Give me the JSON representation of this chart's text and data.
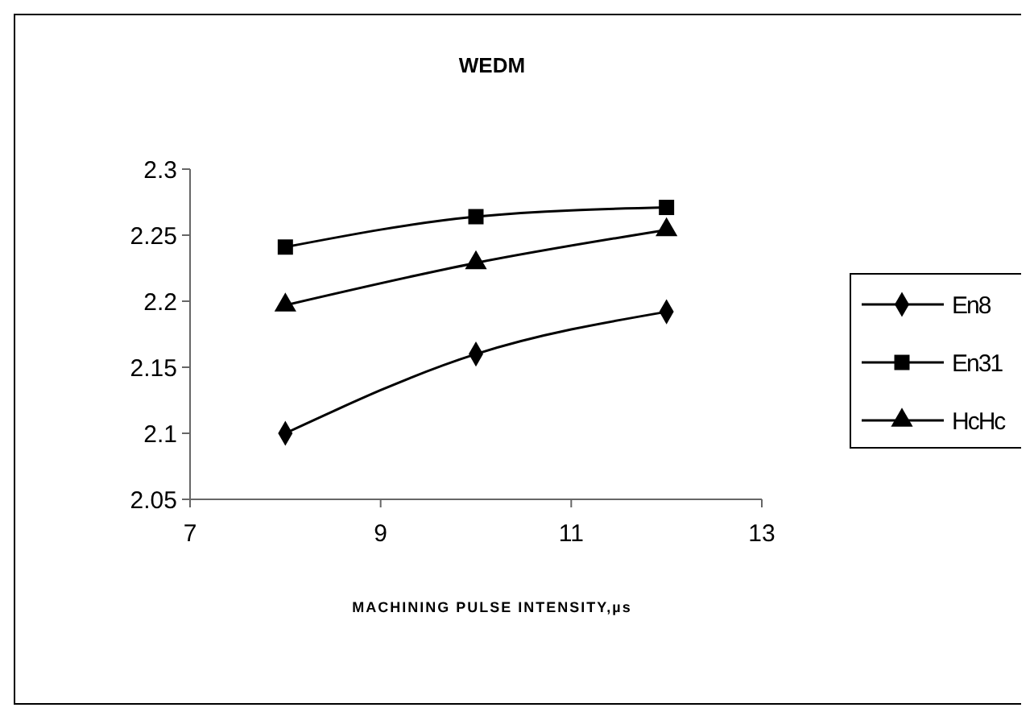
{
  "chart_data": {
    "type": "line",
    "title": "WEDM",
    "xlabel": "MACHINING PULSE INTENSITY,µs",
    "x": [
      8,
      10,
      12
    ],
    "series": [
      {
        "name": "En8",
        "color": "#000000",
        "marker": "diamond",
        "values": [
          2.1,
          2.16,
          2.192
        ]
      },
      {
        "name": "En31",
        "color": "#000000",
        "marker": "square",
        "values": [
          2.241,
          2.264,
          2.271
        ]
      },
      {
        "name": "HcHc",
        "color": "#000000",
        "marker": "triangle",
        "values": [
          2.197,
          2.229,
          2.254
        ]
      }
    ],
    "xlim": [
      7,
      13
    ],
    "xticks": [
      7,
      9,
      11,
      13
    ],
    "ylim": [
      2.05,
      2.3
    ],
    "yticks": [
      2.05,
      2.1,
      2.15,
      2.2,
      2.25,
      2.3
    ],
    "grid": false,
    "legend": "right",
    "line_style": "solid"
  }
}
